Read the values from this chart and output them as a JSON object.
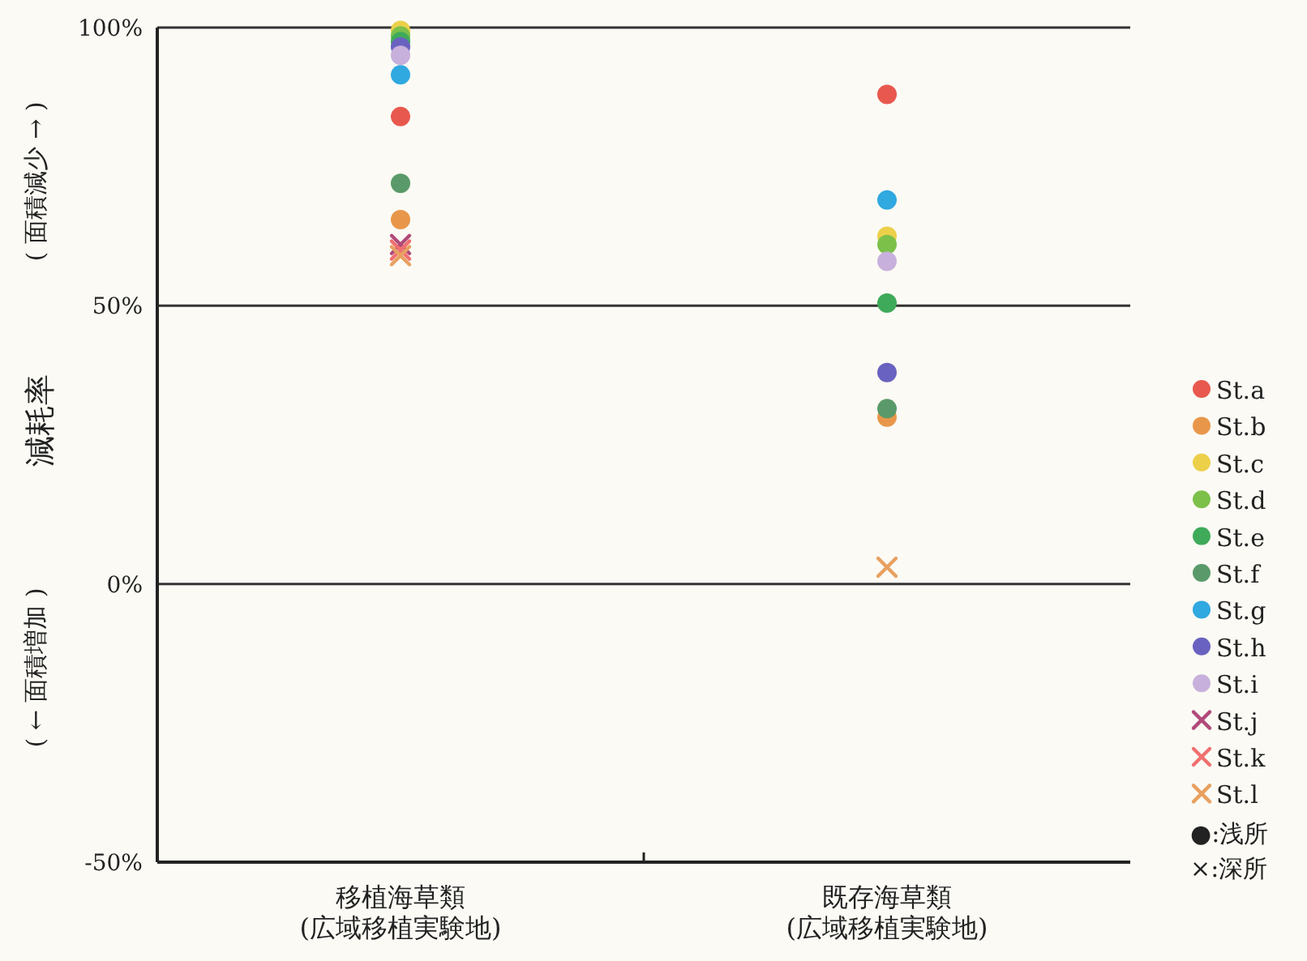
{
  "chart_data": {
    "type": "scatter",
    "ylabel": "減耗率",
    "categories": [
      "移植海草類\n(広域移植実験地)",
      "既存海草類\n(広域移植実験地)"
    ],
    "ylim": [
      -50,
      100
    ],
    "yticks": [
      {
        "value": -50,
        "label": "-50%"
      },
      {
        "value": 0,
        "label": "0%"
      },
      {
        "value": 50,
        "label": "50%"
      },
      {
        "value": 100,
        "label": "100%"
      }
    ],
    "grid": "y",
    "legend": "right",
    "series": [
      {
        "name": "St.a",
        "color": "#e8584e",
        "marker": "circle",
        "values": [
          84,
          88
        ]
      },
      {
        "name": "St.b",
        "color": "#e8974a",
        "marker": "circle",
        "values": [
          65.5,
          30
        ]
      },
      {
        "name": "St.c",
        "color": "#ecd04a",
        "marker": "circle",
        "values": [
          99.5,
          62.5
        ]
      },
      {
        "name": "St.d",
        "color": "#7cc04a",
        "marker": "circle",
        "values": [
          98.5,
          61
        ]
      },
      {
        "name": "St.e",
        "color": "#3faa5a",
        "marker": "circle",
        "values": [
          97.5,
          50.5
        ]
      },
      {
        "name": "St.f",
        "color": "#5a9a6a",
        "marker": "circle",
        "values": [
          72,
          31.5
        ]
      },
      {
        "name": "St.g",
        "color": "#30a8e0",
        "marker": "circle",
        "values": [
          91.5,
          69
        ]
      },
      {
        "name": "St.h",
        "color": "#6a62c0",
        "marker": "circle",
        "values": [
          96.5,
          38
        ]
      },
      {
        "name": "St.i",
        "color": "#c8b0dc",
        "marker": "circle",
        "values": [
          95,
          58
        ]
      },
      {
        "name": "St.j",
        "color": "#b04a7a",
        "marker": "cross",
        "values": [
          61,
          null
        ]
      },
      {
        "name": "St.k",
        "color": "#f07070",
        "marker": "cross",
        "values": [
          60,
          null
        ]
      },
      {
        "name": "St.l",
        "color": "#e8a060",
        "marker": "cross",
        "values": [
          59,
          3
        ]
      }
    ],
    "annotations": [
      "●:浅所",
      "×:深所",
      "(  ←  面積増加  )",
      "(  面積減少  →  )"
    ]
  }
}
